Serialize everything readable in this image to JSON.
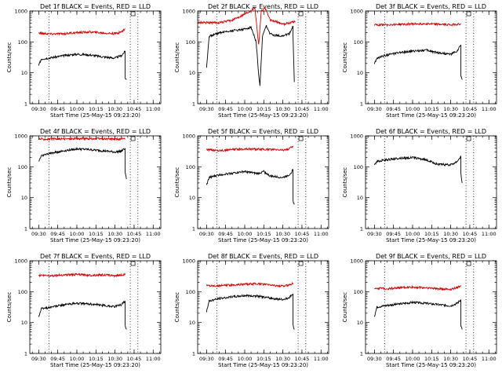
{
  "chart_data": [
    {
      "type": "line",
      "title": "Det 1f BLACK = Events, RED = LLD",
      "xlabel": "Start Time (25-May-15 09:23:20)",
      "ylabel": "Counts/sec",
      "yscale": "log",
      "ylim": [
        1,
        1000
      ],
      "xlim": [
        "09:23",
        "11:06"
      ],
      "xticks": [
        "09:30",
        "09:45",
        "10:00",
        "10:15",
        "10:30",
        "10:45",
        "11:00"
      ],
      "yticks": [
        "1",
        "10",
        "100",
        "1000"
      ],
      "vertical_lines": [
        "09:38",
        "10:42",
        "10:48"
      ],
      "series": [
        {
          "color": "#d00000",
          "x": [
            "09:30",
            "09:40",
            "09:50",
            "10:00",
            "10:10",
            "10:20",
            "10:30",
            "10:35",
            "10:38"
          ],
          "values": [
            190,
            180,
            185,
            200,
            210,
            195,
            185,
            210,
            270
          ]
        },
        {
          "color": "#000000",
          "x": [
            "09:30",
            "09:32",
            "09:40",
            "09:50",
            "10:00",
            "10:10",
            "10:20",
            "10:30",
            "10:35",
            "10:38",
            "10:38",
            "10:39"
          ],
          "values": [
            17,
            28,
            31,
            36,
            40,
            38,
            33,
            30,
            36,
            50,
            7,
            6
          ]
        }
      ]
    },
    {
      "type": "line",
      "title": "Det 2f BLACK = Events, RED = LLD",
      "xlabel": "Start Time (25-May-15 09:23:20)",
      "ylabel": "Counts/sec",
      "yscale": "log",
      "ylim": [
        1,
        1000
      ],
      "xlim": [
        "09:23",
        "11:06"
      ],
      "xticks": [
        "09:30",
        "09:45",
        "10:00",
        "10:15",
        "10:30",
        "10:45",
        "11:00"
      ],
      "yticks": [
        "1",
        "10",
        "100",
        "1000"
      ],
      "vertical_lines": [
        "09:38",
        "10:42",
        "10:48"
      ],
      "series": [
        {
          "color": "#d00000",
          "x": [
            "09:23",
            "09:40",
            "09:50",
            "10:00",
            "10:05",
            "10:08",
            "10:11",
            "10:13",
            "10:16",
            "10:20",
            "10:25",
            "10:30",
            "10:35",
            "10:38",
            "10:40"
          ],
          "values": [
            420,
            420,
            500,
            800,
            1050,
            1300,
            80,
            1000,
            1300,
            500,
            450,
            380,
            400,
            460,
            440
          ]
        },
        {
          "color": "#000000",
          "x": [
            "09:30",
            "09:32",
            "09:40",
            "09:50",
            "10:00",
            "10:05",
            "10:09",
            "10:11",
            "10:12",
            "10:14",
            "10:17",
            "10:20",
            "10:25",
            "10:30",
            "10:35",
            "10:38",
            "10:38",
            "10:39"
          ],
          "values": [
            15,
            150,
            200,
            230,
            260,
            300,
            100,
            8,
            4,
            150,
            330,
            180,
            160,
            160,
            180,
            320,
            150,
            5
          ]
        }
      ]
    },
    {
      "type": "line",
      "title": "Det 3f BLACK = Events, RED = LLD",
      "xlabel": "Start Time (25-May-15 09:23:20)",
      "ylabel": "Counts/sec",
      "yscale": "log",
      "ylim": [
        1,
        1000
      ],
      "xlim": [
        "09:23",
        "11:06"
      ],
      "xticks": [
        "09:30",
        "09:45",
        "10:00",
        "10:15",
        "10:30",
        "10:45",
        "11:00"
      ],
      "yticks": [
        "1",
        "10",
        "100",
        "1000"
      ],
      "vertical_lines": [
        "09:38",
        "10:42",
        "10:48"
      ],
      "series": [
        {
          "color": "#d00000",
          "x": [
            "09:30",
            "09:40",
            "09:50",
            "10:00",
            "10:10",
            "10:20",
            "10:30",
            "10:38"
          ],
          "values": [
            350,
            360,
            370,
            380,
            390,
            370,
            360,
            380
          ]
        },
        {
          "color": "#000000",
          "x": [
            "09:30",
            "09:32",
            "09:40",
            "09:50",
            "10:00",
            "10:10",
            "10:20",
            "10:30",
            "10:35",
            "10:38",
            "10:38",
            "10:39"
          ],
          "values": [
            20,
            30,
            38,
            45,
            50,
            55,
            45,
            40,
            50,
            80,
            8,
            6
          ]
        }
      ]
    },
    {
      "type": "line",
      "title": "Det 4f BLACK = Events, RED = LLD",
      "xlabel": "Start Time (25-May-15 09:23:20)",
      "ylabel": "Counts/sec",
      "yscale": "log",
      "ylim": [
        1,
        1000
      ],
      "xlim": [
        "09:23",
        "11:06"
      ],
      "xticks": [
        "09:30",
        "09:45",
        "10:00",
        "10:15",
        "10:30",
        "10:45",
        "11:00"
      ],
      "yticks": [
        "1",
        "10",
        "100",
        "1000"
      ],
      "vertical_lines": [
        "09:38",
        "10:42",
        "10:48"
      ],
      "series": [
        {
          "color": "#d00000",
          "x": [
            "09:30",
            "09:40",
            "09:50",
            "10:00",
            "10:10",
            "10:20",
            "10:30",
            "10:38"
          ],
          "values": [
            800,
            790,
            800,
            820,
            810,
            800,
            790,
            800
          ]
        },
        {
          "color": "#000000",
          "x": [
            "09:30",
            "09:32",
            "09:40",
            "09:50",
            "10:00",
            "10:10",
            "10:20",
            "10:30",
            "10:35",
            "10:38",
            "10:38",
            "10:39"
          ],
          "values": [
            150,
            230,
            280,
            330,
            380,
            360,
            330,
            300,
            320,
            400,
            70,
            40
          ]
        }
      ]
    },
    {
      "type": "line",
      "title": "Det 5f BLACK = Events, RED = LLD",
      "xlabel": "Start Time (25-May-15 09:23:20)",
      "ylabel": "Counts/sec",
      "yscale": "log",
      "ylim": [
        1,
        1000
      ],
      "xlim": [
        "09:23",
        "11:06"
      ],
      "xticks": [
        "09:30",
        "09:45",
        "10:00",
        "10:15",
        "10:30",
        "10:45",
        "11:00"
      ],
      "yticks": [
        "1",
        "10",
        "100",
        "1000"
      ],
      "vertical_lines": [
        "09:38",
        "10:42",
        "10:48"
      ],
      "series": [
        {
          "color": "#d00000",
          "x": [
            "09:30",
            "09:40",
            "09:50",
            "10:00",
            "10:10",
            "10:20",
            "10:30",
            "10:35",
            "10:38"
          ],
          "values": [
            350,
            340,
            360,
            380,
            370,
            360,
            350,
            380,
            470
          ]
        },
        {
          "color": "#000000",
          "x": [
            "09:30",
            "09:32",
            "09:40",
            "09:50",
            "10:00",
            "10:10",
            "10:15",
            "10:20",
            "10:30",
            "10:35",
            "10:38",
            "10:38",
            "10:39"
          ],
          "values": [
            25,
            45,
            55,
            62,
            70,
            60,
            70,
            50,
            45,
            55,
            80,
            8,
            6
          ]
        }
      ]
    },
    {
      "type": "line",
      "title": "Det 6f BLACK = Events, RED = LLD",
      "xlabel": "Start Time (25-May-15 09:23:20)",
      "ylabel": "Counts/sec",
      "yscale": "log",
      "ylim": [
        1,
        1000
      ],
      "xlim": [
        "09:23",
        "11:06"
      ],
      "xticks": [
        "09:30",
        "09:45",
        "10:00",
        "10:15",
        "10:30",
        "10:45",
        "11:00"
      ],
      "yticks": [
        "1",
        "10",
        "100",
        "1000"
      ],
      "vertical_lines": [
        "09:38",
        "10:42",
        "10:48"
      ],
      "series": [
        {
          "color": "#000000",
          "x": [
            "09:30",
            "09:32",
            "09:40",
            "09:50",
            "10:00",
            "10:10",
            "10:20",
            "10:30",
            "10:35",
            "10:38",
            "10:38",
            "10:39"
          ],
          "values": [
            110,
            150,
            170,
            190,
            200,
            170,
            120,
            115,
            150,
            220,
            60,
            30
          ]
        }
      ]
    },
    {
      "type": "line",
      "title": "Det 7f BLACK = Events, RED = LLD",
      "xlabel": "Start Time (25-May-15 09:23:20)",
      "ylabel": "Counts/sec",
      "yscale": "log",
      "ylim": [
        1,
        1000
      ],
      "xlim": [
        "09:23",
        "11:06"
      ],
      "xticks": [
        "09:30",
        "09:45",
        "10:00",
        "10:15",
        "10:30",
        "10:45",
        "11:00"
      ],
      "yticks": [
        "1",
        "10",
        "100",
        "1000"
      ],
      "vertical_lines": [
        "09:38",
        "10:42",
        "10:48"
      ],
      "series": [
        {
          "color": "#d00000",
          "x": [
            "09:30",
            "09:40",
            "09:50",
            "10:00",
            "10:10",
            "10:20",
            "10:30",
            "10:38"
          ],
          "values": [
            340,
            330,
            350,
            360,
            340,
            350,
            330,
            360
          ]
        },
        {
          "color": "#000000",
          "x": [
            "09:30",
            "09:32",
            "09:40",
            "09:50",
            "10:00",
            "10:10",
            "10:20",
            "10:30",
            "10:35",
            "10:38",
            "10:38",
            "10:39"
          ],
          "values": [
            15,
            28,
            32,
            38,
            42,
            40,
            36,
            33,
            38,
            50,
            8,
            6
          ]
        }
      ]
    },
    {
      "type": "line",
      "title": "Det 8f BLACK = Events, RED = LLD",
      "xlabel": "Start Time (25-May-15 09:23:20)",
      "ylabel": "Counts/sec",
      "yscale": "log",
      "ylim": [
        1,
        1000
      ],
      "xlim": [
        "09:23",
        "11:06"
      ],
      "xticks": [
        "09:30",
        "09:45",
        "10:00",
        "10:15",
        "10:30",
        "10:45",
        "11:00"
      ],
      "yticks": [
        "1",
        "10",
        "100",
        "1000"
      ],
      "vertical_lines": [
        "09:38",
        "10:42",
        "10:48"
      ],
      "series": [
        {
          "color": "#d00000",
          "x": [
            "09:30",
            "09:40",
            "09:50",
            "10:00",
            "10:10",
            "10:20",
            "10:30",
            "10:35",
            "10:38"
          ],
          "values": [
            160,
            155,
            165,
            175,
            180,
            165,
            150,
            165,
            190
          ]
        },
        {
          "color": "#000000",
          "x": [
            "09:30",
            "09:32",
            "09:40",
            "09:50",
            "10:00",
            "10:10",
            "10:20",
            "10:30",
            "10:35",
            "10:38",
            "10:38",
            "10:39"
          ],
          "values": [
            22,
            50,
            60,
            68,
            75,
            72,
            62,
            55,
            65,
            85,
            8,
            6
          ]
        }
      ]
    },
    {
      "type": "line",
      "title": "Det 9f BLACK = Events, RED = LLD",
      "xlabel": "Start Time (25-May-15 09:23:20)",
      "ylabel": "Counts/sec",
      "yscale": "log",
      "ylim": [
        1,
        1000
      ],
      "xlim": [
        "09:23",
        "11:06"
      ],
      "xticks": [
        "09:30",
        "09:45",
        "10:00",
        "10:15",
        "10:30",
        "10:45",
        "11:00"
      ],
      "yticks": [
        "1",
        "10",
        "100",
        "1000"
      ],
      "vertical_lines": [
        "09:38",
        "10:42",
        "10:48"
      ],
      "series": [
        {
          "color": "#d00000",
          "x": [
            "09:30",
            "09:40",
            "09:50",
            "10:00",
            "10:10",
            "10:20",
            "10:30",
            "10:35",
            "10:38"
          ],
          "values": [
            130,
            125,
            135,
            140,
            135,
            125,
            120,
            135,
            160
          ]
        },
        {
          "color": "#000000",
          "x": [
            "09:30",
            "09:32",
            "09:40",
            "09:50",
            "10:00",
            "10:10",
            "10:20",
            "10:30",
            "10:35",
            "10:38",
            "10:38",
            "10:39"
          ],
          "values": [
            16,
            32,
            36,
            40,
            45,
            42,
            38,
            35,
            42,
            55,
            8,
            6
          ]
        }
      ]
    }
  ]
}
